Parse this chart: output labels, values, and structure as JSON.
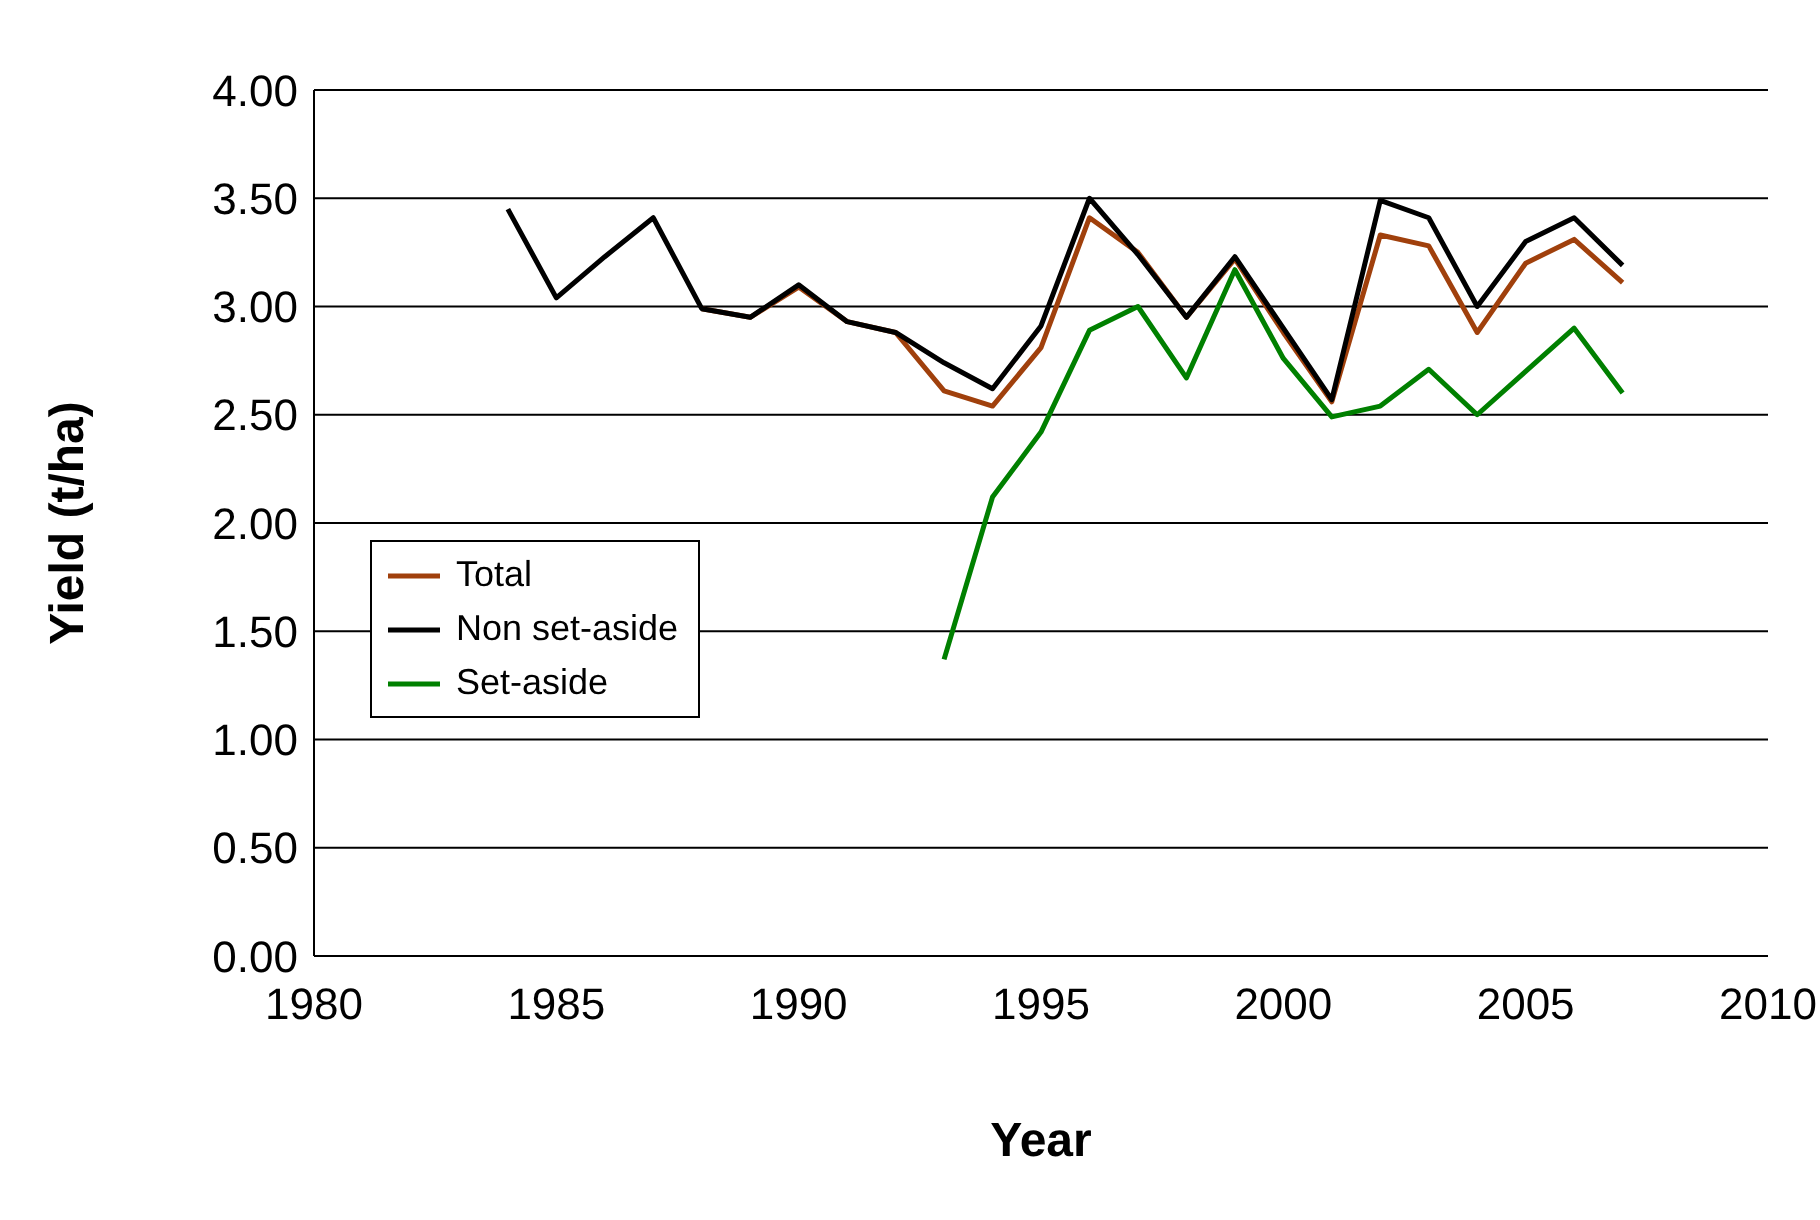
{
  "chart_data": {
    "type": "line",
    "xlabel": "Year",
    "ylabel": "Yield (t/ha)",
    "x": [
      1984,
      1985,
      1986,
      1987,
      1988,
      1989,
      1990,
      1991,
      1992,
      1993,
      1994,
      1995,
      1996,
      1997,
      1998,
      1999,
      2000,
      2001,
      2002,
      2003,
      2004,
      2005,
      2006,
      2007
    ],
    "series": [
      {
        "name": "Total",
        "color": "#a0400c",
        "values": [
          null,
          null,
          null,
          null,
          2.99,
          2.95,
          3.09,
          2.93,
          2.88,
          2.61,
          2.54,
          2.81,
          3.41,
          3.25,
          2.95,
          3.22,
          2.88,
          2.56,
          3.33,
          3.28,
          2.88,
          3.2,
          3.31,
          3.11
        ]
      },
      {
        "name": "Non set-aside",
        "color": "#000000",
        "values": [
          3.45,
          3.04,
          3.23,
          3.41,
          2.99,
          2.95,
          3.1,
          2.93,
          2.88,
          2.74,
          2.62,
          2.91,
          3.5,
          3.24,
          2.95,
          3.23,
          2.9,
          2.57,
          3.49,
          3.41,
          3.0,
          3.3,
          3.41,
          3.19
        ]
      },
      {
        "name": "Set-aside",
        "color": "#008000",
        "values": [
          null,
          null,
          null,
          null,
          null,
          null,
          null,
          null,
          null,
          1.37,
          2.12,
          2.42,
          2.89,
          3.0,
          2.67,
          3.17,
          2.76,
          2.49,
          2.54,
          2.71,
          2.5,
          2.7,
          2.9,
          2.6
        ]
      }
    ],
    "xlim": [
      1980,
      2010
    ],
    "xticks": [
      1980,
      1985,
      1990,
      1995,
      2000,
      2005,
      2010
    ],
    "ylim": [
      0,
      4
    ],
    "yticks": [
      {
        "value": 0,
        "label": "0.00"
      },
      {
        "value": 0.5,
        "label": "0.50"
      },
      {
        "value": 1,
        "label": "1.00"
      },
      {
        "value": 1.5,
        "label": "1.50"
      },
      {
        "value": 2,
        "label": "2.00"
      },
      {
        "value": 2.5,
        "label": "2.50"
      },
      {
        "value": 3,
        "label": "3.00"
      },
      {
        "value": 3.5,
        "label": "3.50"
      },
      {
        "value": 4,
        "label": "4.00"
      }
    ],
    "grid": "y",
    "legend": "left",
    "marker": "none",
    "line_style": "solid"
  }
}
